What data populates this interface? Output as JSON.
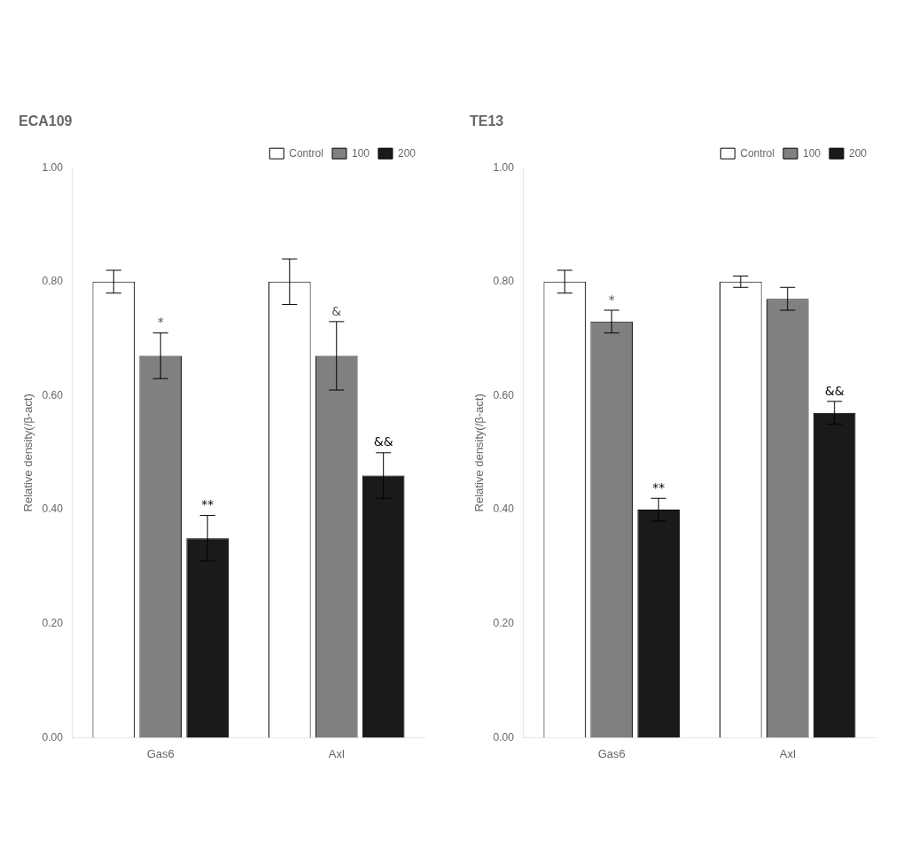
{
  "chart_data": [
    {
      "type": "bar",
      "title": "ECA109",
      "categories": [
        "Gas6",
        "Axl"
      ],
      "series": [
        {
          "name": "Control",
          "color": "white",
          "values": [
            0.8,
            0.8
          ],
          "errors": [
            0.02,
            0.04
          ]
        },
        {
          "name": "100",
          "color": "#808080",
          "values": [
            0.67,
            0.67
          ],
          "errors": [
            0.04,
            0.06
          ]
        },
        {
          "name": "200",
          "color": "#1a1a1a",
          "values": [
            0.35,
            0.46
          ],
          "errors": [
            0.04,
            0.04
          ]
        }
      ],
      "annotations": [
        {
          "category": "Gas6",
          "series": "100",
          "text": "*",
          "color": "#555555"
        },
        {
          "category": "Gas6",
          "series": "200",
          "text": "**",
          "color": "black"
        },
        {
          "category": "Axl",
          "series": "100",
          "text": "&",
          "color": "#555555"
        },
        {
          "category": "Axl",
          "series": "200",
          "text": "&&",
          "color": "black"
        }
      ],
      "ylabel": "Relative density(/β-act)",
      "ylim": [
        0.0,
        1.0
      ],
      "yticks": [
        {
          "value": 0.0,
          "label": "0.00"
        },
        {
          "value": 0.2,
          "label": "0.20"
        },
        {
          "value": 0.4,
          "label": "0.40"
        },
        {
          "value": 0.6,
          "label": "0.60"
        },
        {
          "value": 0.8,
          "label": "0.80"
        },
        {
          "value": 1.0,
          "label": "1.00"
        }
      ],
      "grid": false,
      "legend": "upper right"
    },
    {
      "type": "bar",
      "title": "TE13",
      "categories": [
        "Gas6",
        "Axl"
      ],
      "series": [
        {
          "name": "Control",
          "color": "white",
          "values": [
            0.8,
            0.8
          ],
          "errors": [
            0.02,
            0.01
          ]
        },
        {
          "name": "100",
          "color": "#808080",
          "values": [
            0.73,
            0.77
          ],
          "errors": [
            0.02,
            0.02
          ]
        },
        {
          "name": "200",
          "color": "#1a1a1a",
          "values": [
            0.4,
            0.57
          ],
          "errors": [
            0.02,
            0.02
          ]
        }
      ],
      "annotations": [
        {
          "category": "Gas6",
          "series": "100",
          "text": "*",
          "color": "#555555"
        },
        {
          "category": "Gas6",
          "series": "200",
          "text": "**",
          "color": "black"
        },
        {
          "category": "Axl",
          "series": "200",
          "text": "&&",
          "color": "black"
        }
      ],
      "ylabel": "Relative density(/β-act)",
      "ylim": [
        0.0,
        1.0
      ],
      "yticks": [
        {
          "value": 0.0,
          "label": "0.00"
        },
        {
          "value": 0.2,
          "label": "0.20"
        },
        {
          "value": 0.4,
          "label": "0.40"
        },
        {
          "value": 0.6,
          "label": "0.60"
        },
        {
          "value": 0.8,
          "label": "0.80"
        },
        {
          "value": 1.0,
          "label": "1.00"
        }
      ],
      "grid": false,
      "legend": "upper right"
    }
  ]
}
